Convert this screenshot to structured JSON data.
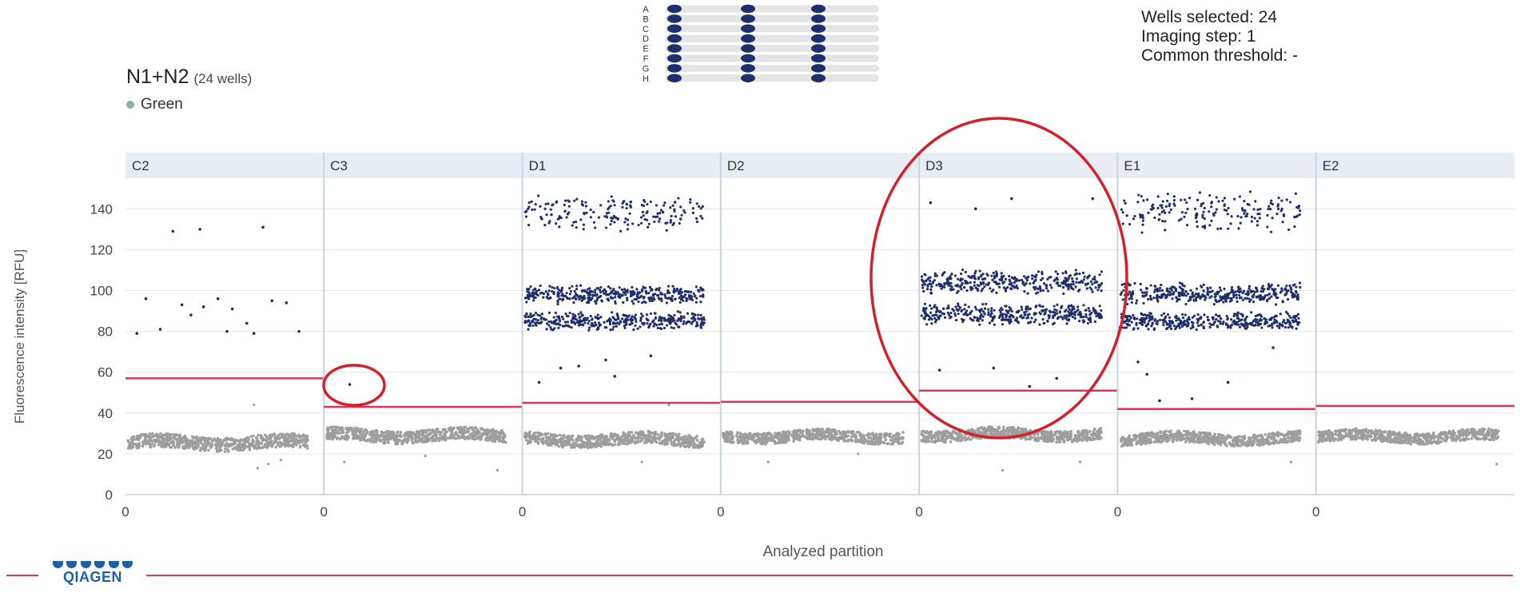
{
  "header": {
    "title": "N1+N2",
    "title_suffix": "(24 wells)",
    "legend_label": "Green",
    "legend_color": "#7fb89a"
  },
  "info": {
    "wells_selected": "Wells selected: 24",
    "imaging_step": "Imaging step: 1",
    "common_threshold": "Common threshold: -"
  },
  "plate": {
    "rows": [
      "A",
      "B",
      "C",
      "D",
      "E",
      "F",
      "G",
      "H"
    ],
    "filled_color": "#1e2f6b",
    "empty_color": "#e4e4e4"
  },
  "brand": {
    "logo_text": "QIAGEN",
    "logo_color": "#1d5fa8",
    "line_color": "#d33a5e"
  },
  "chart_data": {
    "type": "scatter",
    "ylabel": "Fluorescence intensity [RFU]",
    "xlabel": "Analyzed partition",
    "ylim": [
      0,
      155
    ],
    "y_ticks": [
      "0",
      "20",
      "40",
      "60",
      "80",
      "100",
      "120",
      "140"
    ],
    "x_tick_label": "0",
    "grid": true,
    "colors": {
      "positive": "#1e2f6b",
      "negative": "#9e9e9e",
      "threshold": "#d6385e",
      "panel_header": "#e8edf3"
    },
    "panels": [
      {
        "well": "C2",
        "threshold": 57,
        "negative_band": [
          20,
          31
        ],
        "positive_bands": [],
        "sparse_positive": [
          [
            0.1,
            96
          ],
          [
            0.18,
            81
          ],
          [
            0.3,
            93
          ],
          [
            0.35,
            88
          ],
          [
            0.42,
            92
          ],
          [
            0.5,
            96
          ],
          [
            0.58,
            91
          ],
          [
            0.66,
            84
          ],
          [
            0.7,
            79
          ],
          [
            0.8,
            95
          ],
          [
            0.88,
            94
          ],
          [
            0.95,
            80
          ],
          [
            0.25,
            129
          ],
          [
            0.4,
            130
          ],
          [
            0.75,
            131
          ],
          [
            0.05,
            79
          ],
          [
            0.55,
            80
          ]
        ],
        "sparse_low": [
          [
            0.7,
            44
          ],
          [
            0.72,
            13
          ],
          [
            0.78,
            15
          ],
          [
            0.85,
            17
          ]
        ]
      },
      {
        "well": "C3",
        "threshold": 43,
        "negative_band": [
          24,
          34
        ],
        "positive_bands": [],
        "sparse_positive": [
          [
            0.13,
            54
          ]
        ],
        "sparse_low": [
          [
            0.1,
            16
          ],
          [
            0.95,
            12
          ],
          [
            0.55,
            19
          ]
        ]
      },
      {
        "well": "D1",
        "threshold": 45,
        "negative_band": [
          22,
          32
        ],
        "positive_bands": [
          [
            82,
            88
          ],
          [
            95,
            101
          ],
          [
            132,
            145
          ]
        ],
        "sparse_positive": [
          [
            0.08,
            55
          ],
          [
            0.3,
            63
          ],
          [
            0.5,
            58
          ],
          [
            0.45,
            66
          ],
          [
            0.7,
            68
          ],
          [
            0.2,
            62
          ]
        ],
        "sparse_low": [
          [
            0.65,
            16
          ],
          [
            0.8,
            44
          ]
        ]
      },
      {
        "well": "D2",
        "threshold": 45.5,
        "negative_band": [
          24,
          33
        ],
        "positive_bands": [],
        "sparse_positive": [],
        "sparse_low": [
          [
            0.25,
            16
          ],
          [
            0.75,
            20
          ]
        ]
      },
      {
        "well": "D3",
        "threshold": 51,
        "negative_band": [
          25,
          34
        ],
        "positive_bands": [
          [
            85,
            92
          ],
          [
            100,
            108
          ]
        ],
        "sparse_positive": [
          [
            0.05,
            143
          ],
          [
            0.3,
            140
          ],
          [
            0.5,
            145
          ],
          [
            0.95,
            145
          ],
          [
            0.4,
            62
          ],
          [
            0.6,
            53
          ],
          [
            0.1,
            61
          ],
          [
            0.75,
            57
          ]
        ],
        "sparse_low": [
          [
            0.45,
            12
          ],
          [
            0.88,
            16
          ]
        ]
      },
      {
        "well": "E1",
        "threshold": 42,
        "negative_band": [
          23,
          32
        ],
        "positive_bands": [
          [
            82,
            88
          ],
          [
            95,
            102
          ],
          [
            132,
            145
          ]
        ],
        "sparse_positive": [
          [
            0.15,
            59
          ],
          [
            0.4,
            47
          ],
          [
            0.6,
            55
          ],
          [
            0.1,
            65
          ],
          [
            0.22,
            46
          ],
          [
            0.85,
            72
          ]
        ],
        "sparse_low": [
          [
            0.95,
            16
          ]
        ]
      },
      {
        "well": "E2",
        "threshold": 43.5,
        "negative_band": [
          24,
          33
        ],
        "positive_bands": [],
        "sparse_positive": [],
        "sparse_low": [
          [
            0.99,
            15
          ]
        ]
      }
    ]
  }
}
